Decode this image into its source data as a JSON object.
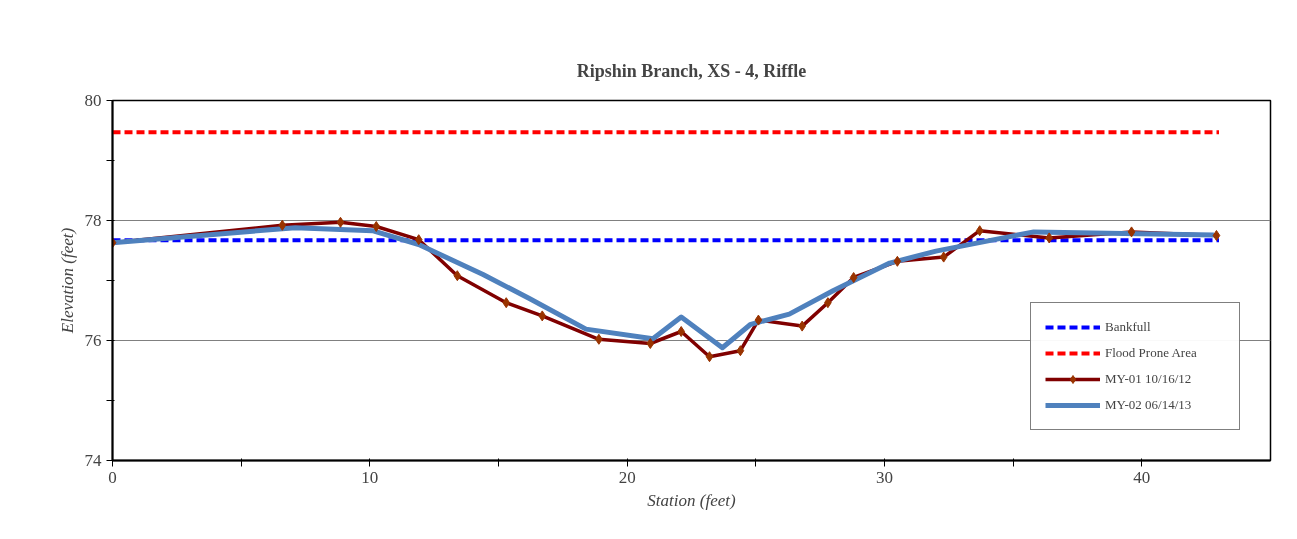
{
  "chart_data": {
    "type": "line",
    "title": "Ripshin Branch, XS - 4, Riffle",
    "xlabel": "Station (feet)",
    "ylabel": "Elevation (feet)",
    "xlim": [
      0,
      45
    ],
    "ylim": [
      74,
      80
    ],
    "xticks": [
      0,
      {
        "value": 5,
        "label": null
      },
      10,
      {
        "value": 15,
        "label": null
      },
      20,
      {
        "value": 25,
        "label": null
      },
      30,
      {
        "value": 35,
        "label": null
      },
      40
    ],
    "yticks": [
      74,
      {
        "value": 75,
        "label": null
      },
      76,
      {
        "value": 77,
        "label": null
      },
      78,
      {
        "value": 79,
        "label": null
      },
      80
    ],
    "grid": "y",
    "legend": "bottom right",
    "series": [
      {
        "name": "Bankfull",
        "color": "#0000ff",
        "line_style": "dashed",
        "marker": "none",
        "x": [
          0,
          43
        ],
        "values": [
          77.67,
          77.67
        ]
      },
      {
        "name": "Flood Prone Area",
        "color": "#ff0000",
        "line_style": "dashed",
        "marker": "none",
        "x": [
          0,
          43
        ],
        "values": [
          79.47,
          79.47
        ]
      },
      {
        "name": "MY-01 10/16/12",
        "color": "#800000",
        "line_style": "solid",
        "marker": "diamond",
        "x": [
          0,
          6.6,
          8.86,
          10.25,
          11.9,
          13.4,
          15.3,
          16.7,
          18.9,
          20.9,
          22.1,
          23.2,
          24.4,
          25.1,
          26.8,
          27.8,
          28.8,
          30.5,
          32.3,
          33.7,
          36.4,
          39.6,
          42.9
        ],
        "values": [
          77.63,
          77.92,
          77.97,
          77.9,
          77.68,
          77.08,
          76.63,
          76.41,
          76.02,
          75.95,
          76.15,
          75.73,
          75.83,
          76.34,
          76.24,
          76.63,
          77.05,
          77.32,
          77.39,
          77.83,
          77.71,
          77.81,
          77.75
        ]
      },
      {
        "name": "MY-02 06/14/13",
        "color": "#4f81bd",
        "line_style": "solid",
        "marker": "none",
        "x": [
          0,
          7.1,
          10.1,
          11.9,
          14.4,
          16.2,
          18.4,
          21.0,
          22.1,
          23.7,
          24.8,
          26.3,
          28.0,
          30.2,
          32.0,
          35.8,
          42.8
        ],
        "values": [
          77.63,
          77.88,
          77.83,
          77.6,
          77.1,
          76.7,
          76.19,
          76.03,
          76.39,
          75.88,
          76.27,
          76.44,
          76.83,
          77.29,
          77.49,
          77.81,
          77.76
        ]
      }
    ]
  }
}
